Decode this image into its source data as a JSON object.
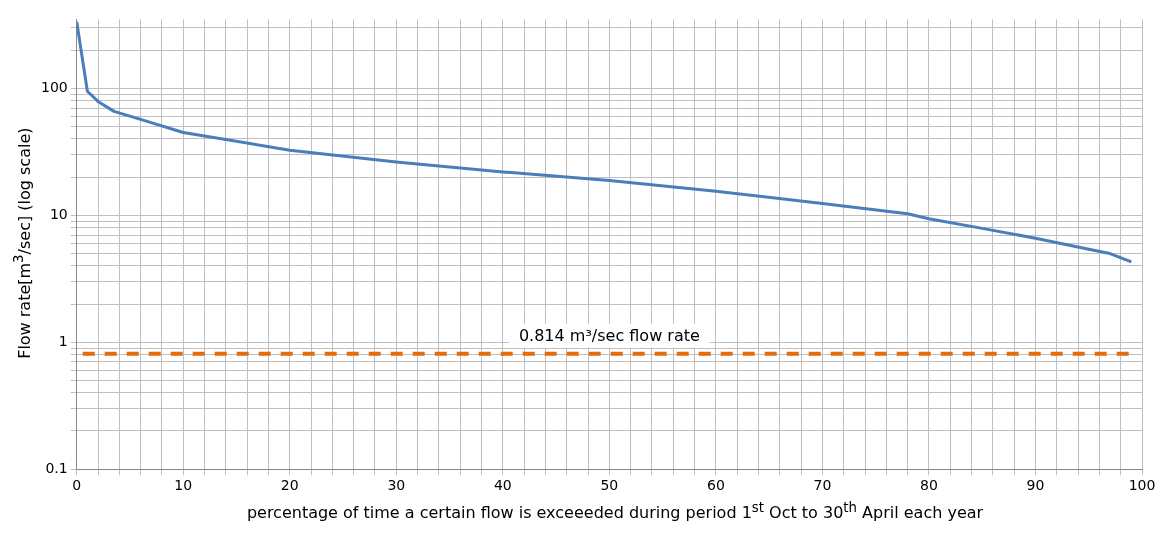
{
  "chart_data": {
    "type": "line",
    "xlabel": "percentage of time a certain flow is exceeeded  during period 1$^{st}$ Oct to 30$^{th}$ April each year",
    "ylabel": "Flow rate[m$^{3}$/sec] (log scale)",
    "x": [
      0,
      1,
      2,
      3.5,
      6,
      10,
      20,
      30,
      40,
      50,
      60,
      70,
      78,
      80,
      85,
      90,
      95,
      97,
      99
    ],
    "series": [
      {
        "color": "#4a7ebb",
        "values": [
          335,
          95,
          79,
          66,
          57,
          45,
          32.6,
          26.3,
          22,
          18.8,
          15.5,
          12.4,
          10.3,
          9.4,
          7.9,
          6.6,
          5.4,
          5.0,
          4.3
        ]
      }
    ],
    "ref_lines": [
      {
        "axis": "y",
        "value": 0.814,
        "label": "0.814 m³/sec flow rate",
        "color": "#e46c0a",
        "line_style": "dashed"
      }
    ],
    "log": "y",
    "xlim": [
      0,
      100
    ],
    "ylim": [
      0.1,
      350
    ],
    "xticks": [
      0,
      {
        "value": 2,
        "label": null
      },
      {
        "value": 4,
        "label": null
      },
      {
        "value": 6,
        "label": null
      },
      {
        "value": 8,
        "label": null
      },
      10,
      {
        "value": 12,
        "label": null
      },
      {
        "value": 14,
        "label": null
      },
      {
        "value": 16,
        "label": null
      },
      {
        "value": 18,
        "label": null
      },
      20,
      {
        "value": 22,
        "label": null
      },
      {
        "value": 24,
        "label": null
      },
      {
        "value": 26,
        "label": null
      },
      {
        "value": 28,
        "label": null
      },
      30,
      {
        "value": 32,
        "label": null
      },
      {
        "value": 34,
        "label": null
      },
      {
        "value": 36,
        "label": null
      },
      {
        "value": 38,
        "label": null
      },
      40,
      {
        "value": 42,
        "label": null
      },
      {
        "value": 44,
        "label": null
      },
      {
        "value": 46,
        "label": null
      },
      {
        "value": 48,
        "label": null
      },
      50,
      {
        "value": 52,
        "label": null
      },
      {
        "value": 54,
        "label": null
      },
      {
        "value": 56,
        "label": null
      },
      {
        "value": 58,
        "label": null
      },
      60,
      {
        "value": 62,
        "label": null
      },
      {
        "value": 64,
        "label": null
      },
      {
        "value": 66,
        "label": null
      },
      {
        "value": 68,
        "label": null
      },
      70,
      {
        "value": 72,
        "label": null
      },
      {
        "value": 74,
        "label": null
      },
      {
        "value": 76,
        "label": null
      },
      {
        "value": 78,
        "label": null
      },
      80,
      {
        "value": 82,
        "label": null
      },
      {
        "value": 84,
        "label": null
      },
      {
        "value": 86,
        "label": null
      },
      {
        "value": 88,
        "label": null
      },
      90,
      {
        "value": 92,
        "label": null
      },
      {
        "value": 94,
        "label": null
      },
      {
        "value": 96,
        "label": null
      },
      {
        "value": 98,
        "label": null
      },
      100
    ],
    "yticks": [
      0.1,
      {
        "value": 0.2,
        "label": null
      },
      {
        "value": 0.3,
        "label": null
      },
      {
        "value": 0.4,
        "label": null
      },
      {
        "value": 0.5,
        "label": null
      },
      {
        "value": 0.6,
        "label": null
      },
      {
        "value": 0.7,
        "label": null
      },
      {
        "value": 0.8,
        "label": null
      },
      {
        "value": 0.9,
        "label": null
      },
      1,
      {
        "value": 2,
        "label": null
      },
      {
        "value": 3,
        "label": null
      },
      {
        "value": 4,
        "label": null
      },
      {
        "value": 5,
        "label": null
      },
      {
        "value": 6,
        "label": null
      },
      {
        "value": 7,
        "label": null
      },
      {
        "value": 8,
        "label": null
      },
      {
        "value": 9,
        "label": null
      },
      10,
      {
        "value": 20,
        "label": null
      },
      {
        "value": 30,
        "label": null
      },
      {
        "value": 40,
        "label": null
      },
      {
        "value": 50,
        "label": null
      },
      {
        "value": 60,
        "label": null
      },
      {
        "value": 70,
        "label": null
      },
      {
        "value": 80,
        "label": null
      },
      {
        "value": 90,
        "label": null
      },
      100,
      {
        "value": 200,
        "label": null
      },
      {
        "value": 300,
        "label": null
      }
    ],
    "grid": true,
    "legend": false,
    "marker": "none",
    "line_style": "solid"
  }
}
